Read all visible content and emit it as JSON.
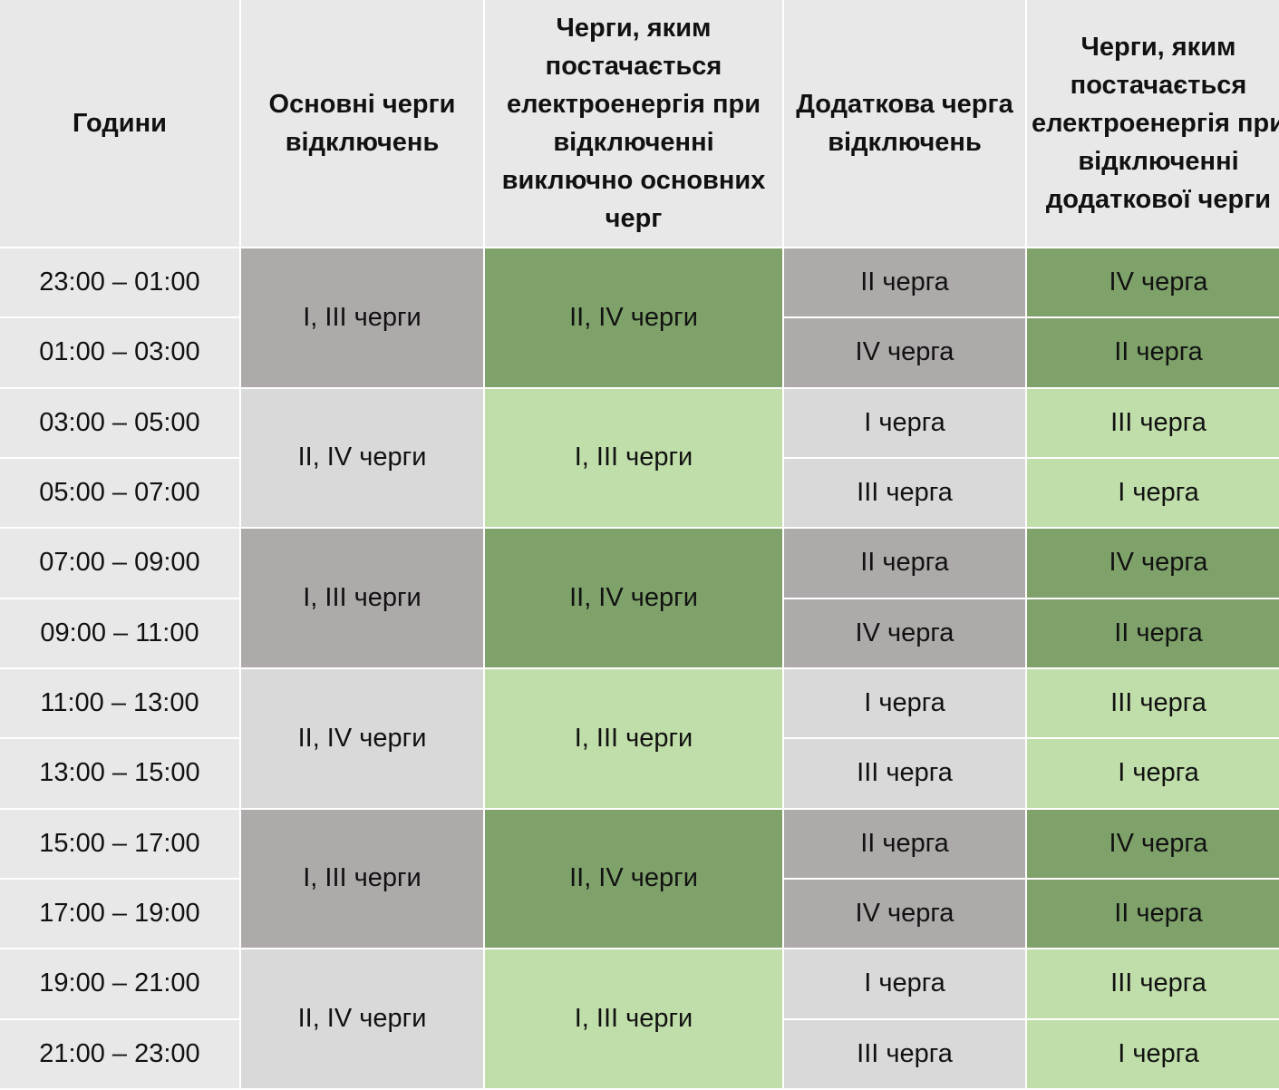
{
  "headers": [
    "Години",
    "Основні черги відключень",
    "Черги, яким постачається електроенергія при відключенні виключно основних черг",
    "Додаткова черга відключень",
    "Черги, яким постачається електроенергія при відключенні додаткової черги"
  ],
  "colors": {
    "header": "#e8e8e8",
    "gray_dark": "#aeaaaa",
    "green_dark": "#7fa26a",
    "gray_light": "#d9d9d9",
    "green_light": "#c0dea9"
  },
  "groups": [
    {
      "main": "I, III черги",
      "supplied": "II, IV черги",
      "rows": [
        {
          "time": "23:00 – 01:00",
          "extra": "II черга",
          "extra_supplied": "IV черга"
        },
        {
          "time": "01:00 – 03:00",
          "extra": "IV черга",
          "extra_supplied": "II черга"
        }
      ]
    },
    {
      "main": "II, IV черги",
      "supplied": "I, III черги",
      "rows": [
        {
          "time": "03:00 – 05:00",
          "extra": "I черга",
          "extra_supplied": "III черга"
        },
        {
          "time": "05:00 – 07:00",
          "extra": "III черга",
          "extra_supplied": "I черга"
        }
      ]
    },
    {
      "main": "I, III черги",
      "supplied": "II, IV черги",
      "rows": [
        {
          "time": "07:00 – 09:00",
          "extra": "II черга",
          "extra_supplied": "IV черга"
        },
        {
          "time": "09:00 – 11:00",
          "extra": "IV черга",
          "extra_supplied": "II черга"
        }
      ]
    },
    {
      "main": "II, IV черги",
      "supplied": "I, III черги",
      "rows": [
        {
          "time": "11:00 – 13:00",
          "extra": "I черга",
          "extra_supplied": "III черга"
        },
        {
          "time": "13:00 – 15:00",
          "extra": "III черга",
          "extra_supplied": "I черга"
        }
      ]
    },
    {
      "main": "I, III черги",
      "supplied": "II, IV черги",
      "rows": [
        {
          "time": "15:00 – 17:00",
          "extra": "II черга",
          "extra_supplied": "IV черга"
        },
        {
          "time": "17:00 – 19:00",
          "extra": "IV черга",
          "extra_supplied": "II черга"
        }
      ]
    },
    {
      "main": "II, IV черги",
      "supplied": "I, III черги",
      "rows": [
        {
          "time": "19:00 – 21:00",
          "extra": "I черга",
          "extra_supplied": "III черга"
        },
        {
          "time": "21:00 – 23:00",
          "extra": "III черга",
          "extra_supplied": "I черга"
        }
      ]
    }
  ]
}
